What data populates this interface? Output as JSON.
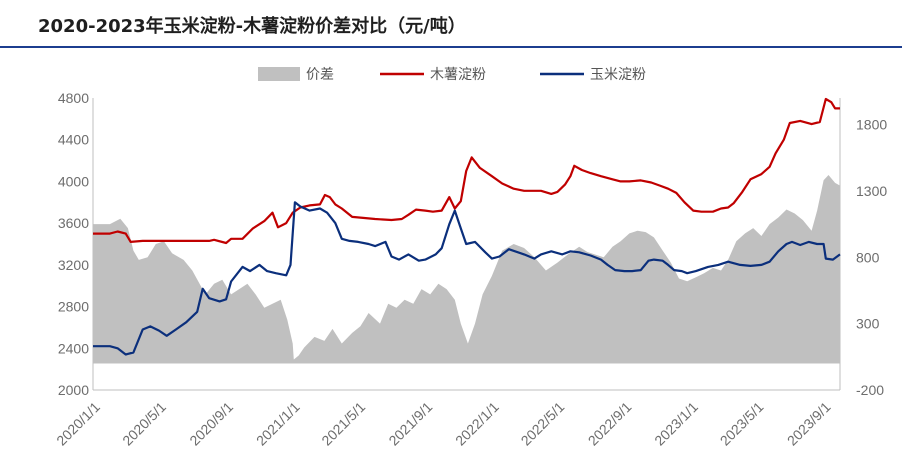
{
  "title": "2020-2023年玉米淀粉-木薯淀粉价差对比（元/吨）",
  "colors": {
    "spread": "#c0c0c0",
    "cassava": "#c00000",
    "corn": "#0b2f7c",
    "title_rule": "#1c3d8f"
  },
  "chart_data": {
    "type": "line",
    "title": "2020-2023年玉米淀粉-木薯淀粉价差对比（元/吨）",
    "legend": {
      "position": "top",
      "entries": [
        "价差",
        "木薯淀粉",
        "玉米淀粉"
      ]
    },
    "grid": false,
    "x_tick_labels": [
      "2020/1/1",
      "2020/5/1",
      "2020/9/1",
      "2021/1/1",
      "2021/5/1",
      "2021/9/1",
      "2022/1/1",
      "2022/5/1",
      "2022/9/1",
      "2023/1/1",
      "2023/5/1",
      "2023/9/1"
    ],
    "y_left": {
      "min": 2000,
      "max": 4800,
      "ticks": [
        "2000",
        "2400",
        "2800",
        "3200",
        "3600",
        "4000",
        "4400",
        "4800"
      ]
    },
    "y_right": {
      "min": -200,
      "max": 2000,
      "ticks": [
        "-200",
        "300",
        "800",
        "1300",
        "1800"
      ]
    },
    "series": [
      {
        "name": "价差",
        "type": "area",
        "axis": "right",
        "points": [
          [
            "2020-01-01",
            1050
          ],
          [
            "2020-02-01",
            1050
          ],
          [
            "2020-02-20",
            1090
          ],
          [
            "2020-03-05",
            1020
          ],
          [
            "2020-03-15",
            850
          ],
          [
            "2020-03-25",
            780
          ],
          [
            "2020-04-10",
            800
          ],
          [
            "2020-04-25",
            900
          ],
          [
            "2020-05-10",
            920
          ],
          [
            "2020-05-25",
            830
          ],
          [
            "2020-06-15",
            780
          ],
          [
            "2020-07-01",
            700
          ],
          [
            "2020-07-25",
            520
          ],
          [
            "2020-08-10",
            600
          ],
          [
            "2020-08-25",
            630
          ],
          [
            "2020-09-10",
            520
          ],
          [
            "2020-09-25",
            560
          ],
          [
            "2020-10-10",
            600
          ],
          [
            "2020-10-25",
            520
          ],
          [
            "2020-11-10",
            420
          ],
          [
            "2020-11-25",
            450
          ],
          [
            "2020-12-10",
            480
          ],
          [
            "2020-12-22",
            330
          ],
          [
            "2021-01-01",
            150
          ],
          [
            "2021-01-03",
            30
          ],
          [
            "2021-01-12",
            60
          ],
          [
            "2021-01-22",
            120
          ],
          [
            "2021-02-10",
            200
          ],
          [
            "2021-02-28",
            170
          ],
          [
            "2021-03-15",
            260
          ],
          [
            "2021-04-01",
            150
          ],
          [
            "2021-04-20",
            230
          ],
          [
            "2021-05-05",
            280
          ],
          [
            "2021-05-20",
            380
          ],
          [
            "2021-06-10",
            300
          ],
          [
            "2021-06-25",
            450
          ],
          [
            "2021-07-10",
            420
          ],
          [
            "2021-07-25",
            480
          ],
          [
            "2021-08-10",
            450
          ],
          [
            "2021-08-25",
            560
          ],
          [
            "2021-09-10",
            520
          ],
          [
            "2021-09-25",
            600
          ],
          [
            "2021-10-10",
            560
          ],
          [
            "2021-10-25",
            480
          ],
          [
            "2021-11-05",
            300
          ],
          [
            "2021-11-18",
            150
          ],
          [
            "2021-12-01",
            300
          ],
          [
            "2021-12-15",
            520
          ],
          [
            "2022-01-01",
            660
          ],
          [
            "2022-01-20",
            850
          ],
          [
            "2022-02-10",
            900
          ],
          [
            "2022-03-01",
            870
          ],
          [
            "2022-03-20",
            800
          ],
          [
            "2022-04-10",
            700
          ],
          [
            "2022-05-01",
            760
          ],
          [
            "2022-05-20",
            820
          ],
          [
            "2022-06-10",
            880
          ],
          [
            "2022-06-25",
            840
          ],
          [
            "2022-07-10",
            820
          ],
          [
            "2022-07-25",
            800
          ],
          [
            "2022-08-10",
            880
          ],
          [
            "2022-08-25",
            920
          ],
          [
            "2022-09-10",
            980
          ],
          [
            "2022-09-25",
            1000
          ],
          [
            "2022-10-10",
            990
          ],
          [
            "2022-10-25",
            950
          ],
          [
            "2022-11-10",
            850
          ],
          [
            "2022-11-25",
            760
          ],
          [
            "2022-12-10",
            640
          ],
          [
            "2022-12-25",
            620
          ],
          [
            "2023-01-10",
            650
          ],
          [
            "2023-01-25",
            680
          ],
          [
            "2023-02-10",
            720
          ],
          [
            "2023-02-25",
            700
          ],
          [
            "2023-03-10",
            780
          ],
          [
            "2023-03-25",
            920
          ],
          [
            "2023-04-10",
            980
          ],
          [
            "2023-04-25",
            1020
          ],
          [
            "2023-05-10",
            960
          ],
          [
            "2023-05-25",
            1050
          ],
          [
            "2023-06-10",
            1100
          ],
          [
            "2023-06-25",
            1160
          ],
          [
            "2023-07-10",
            1130
          ],
          [
            "2023-07-25",
            1080
          ],
          [
            "2023-08-10",
            1000
          ],
          [
            "2023-08-20",
            1150
          ],
          [
            "2023-09-01",
            1380
          ],
          [
            "2023-09-10",
            1420
          ],
          [
            "2023-09-22",
            1360
          ],
          [
            "2023-10-01",
            1340
          ]
        ]
      },
      {
        "name": "木薯淀粉",
        "type": "line",
        "axis": "left",
        "points": [
          [
            "2020-01-01",
            3500
          ],
          [
            "2020-02-01",
            3500
          ],
          [
            "2020-02-15",
            3520
          ],
          [
            "2020-03-01",
            3500
          ],
          [
            "2020-03-10",
            3420
          ],
          [
            "2020-04-01",
            3430
          ],
          [
            "2020-05-01",
            3430
          ],
          [
            "2020-06-01",
            3430
          ],
          [
            "2020-07-01",
            3430
          ],
          [
            "2020-08-01",
            3430
          ],
          [
            "2020-08-10",
            3440
          ],
          [
            "2020-09-01",
            3410
          ],
          [
            "2020-09-10",
            3450
          ],
          [
            "2020-10-01",
            3450
          ],
          [
            "2020-10-20",
            3550
          ],
          [
            "2020-11-10",
            3620
          ],
          [
            "2020-11-25",
            3700
          ],
          [
            "2020-12-05",
            3560
          ],
          [
            "2020-12-20",
            3600
          ],
          [
            "2021-01-01",
            3700
          ],
          [
            "2021-01-15",
            3750
          ],
          [
            "2021-02-01",
            3770
          ],
          [
            "2021-02-20",
            3780
          ],
          [
            "2021-03-01",
            3870
          ],
          [
            "2021-03-10",
            3850
          ],
          [
            "2021-03-20",
            3780
          ],
          [
            "2021-04-01",
            3740
          ],
          [
            "2021-04-20",
            3660
          ],
          [
            "2021-05-10",
            3650
          ],
          [
            "2021-06-01",
            3640
          ],
          [
            "2021-07-01",
            3630
          ],
          [
            "2021-07-20",
            3640
          ],
          [
            "2021-08-01",
            3680
          ],
          [
            "2021-08-15",
            3730
          ],
          [
            "2021-09-01",
            3720
          ],
          [
            "2021-09-15",
            3710
          ],
          [
            "2021-10-01",
            3720
          ],
          [
            "2021-10-15",
            3850
          ],
          [
            "2021-10-25",
            3740
          ],
          [
            "2021-11-05",
            3810
          ],
          [
            "2021-11-15",
            4100
          ],
          [
            "2021-11-25",
            4230
          ],
          [
            "2021-12-10",
            4130
          ],
          [
            "2022-01-01",
            4050
          ],
          [
            "2022-01-20",
            3980
          ],
          [
            "2022-02-10",
            3930
          ],
          [
            "2022-03-01",
            3910
          ],
          [
            "2022-04-01",
            3910
          ],
          [
            "2022-04-20",
            3880
          ],
          [
            "2022-05-01",
            3900
          ],
          [
            "2022-05-15",
            3970
          ],
          [
            "2022-05-25",
            4050
          ],
          [
            "2022-06-01",
            4150
          ],
          [
            "2022-06-15",
            4110
          ],
          [
            "2022-07-01",
            4080
          ],
          [
            "2022-07-20",
            4050
          ],
          [
            "2022-08-10",
            4020
          ],
          [
            "2022-08-25",
            4000
          ],
          [
            "2022-09-10",
            4000
          ],
          [
            "2022-10-01",
            4010
          ],
          [
            "2022-10-20",
            3990
          ],
          [
            "2022-11-05",
            3960
          ],
          [
            "2022-11-20",
            3930
          ],
          [
            "2022-12-05",
            3890
          ],
          [
            "2022-12-20",
            3800
          ],
          [
            "2023-01-05",
            3720
          ],
          [
            "2023-01-20",
            3710
          ],
          [
            "2023-02-10",
            3710
          ],
          [
            "2023-02-25",
            3740
          ],
          [
            "2023-03-10",
            3750
          ],
          [
            "2023-03-20",
            3790
          ],
          [
            "2023-04-05",
            3900
          ],
          [
            "2023-04-20",
            4020
          ],
          [
            "2023-05-10",
            4070
          ],
          [
            "2023-05-25",
            4140
          ],
          [
            "2023-06-05",
            4270
          ],
          [
            "2023-06-20",
            4400
          ],
          [
            "2023-07-01",
            4560
          ],
          [
            "2023-07-20",
            4580
          ],
          [
            "2023-08-10",
            4550
          ],
          [
            "2023-08-25",
            4570
          ],
          [
            "2023-09-05",
            4790
          ],
          [
            "2023-09-15",
            4760
          ],
          [
            "2023-09-22",
            4700
          ],
          [
            "2023-10-01",
            4700
          ]
        ]
      },
      {
        "name": "玉米淀粉",
        "type": "line",
        "axis": "left",
        "points": [
          [
            "2020-01-01",
            2420
          ],
          [
            "2020-02-01",
            2420
          ],
          [
            "2020-02-15",
            2400
          ],
          [
            "2020-03-01",
            2340
          ],
          [
            "2020-03-15",
            2360
          ],
          [
            "2020-04-01",
            2580
          ],
          [
            "2020-04-15",
            2610
          ],
          [
            "2020-05-01",
            2570
          ],
          [
            "2020-05-15",
            2520
          ],
          [
            "2020-06-01",
            2580
          ],
          [
            "2020-06-20",
            2650
          ],
          [
            "2020-07-10",
            2750
          ],
          [
            "2020-07-20",
            2970
          ],
          [
            "2020-08-01",
            2880
          ],
          [
            "2020-08-20",
            2850
          ],
          [
            "2020-09-01",
            2870
          ],
          [
            "2020-09-10",
            3040
          ],
          [
            "2020-10-01",
            3180
          ],
          [
            "2020-10-15",
            3140
          ],
          [
            "2020-11-01",
            3200
          ],
          [
            "2020-11-15",
            3140
          ],
          [
            "2020-12-01",
            3120
          ],
          [
            "2020-12-20",
            3100
          ],
          [
            "2020-12-28",
            3200
          ],
          [
            "2021-01-01",
            3500
          ],
          [
            "2021-01-05",
            3800
          ],
          [
            "2021-01-15",
            3760
          ],
          [
            "2021-02-01",
            3720
          ],
          [
            "2021-02-20",
            3740
          ],
          [
            "2021-03-05",
            3700
          ],
          [
            "2021-03-20",
            3600
          ],
          [
            "2021-04-01",
            3450
          ],
          [
            "2021-04-15",
            3430
          ],
          [
            "2021-05-01",
            3420
          ],
          [
            "2021-05-20",
            3400
          ],
          [
            "2021-06-01",
            3380
          ],
          [
            "2021-06-20",
            3420
          ],
          [
            "2021-07-01",
            3280
          ],
          [
            "2021-07-15",
            3250
          ],
          [
            "2021-08-01",
            3300
          ],
          [
            "2021-08-20",
            3240
          ],
          [
            "2021-09-01",
            3250
          ],
          [
            "2021-09-20",
            3300
          ],
          [
            "2021-10-01",
            3360
          ],
          [
            "2021-10-15",
            3590
          ],
          [
            "2021-10-25",
            3720
          ],
          [
            "2021-11-05",
            3550
          ],
          [
            "2021-11-15",
            3400
          ],
          [
            "2021-12-01",
            3420
          ],
          [
            "2021-12-20",
            3320
          ],
          [
            "2022-01-01",
            3260
          ],
          [
            "2022-01-15",
            3280
          ],
          [
            "2022-02-01",
            3350
          ],
          [
            "2022-03-01",
            3300
          ],
          [
            "2022-03-20",
            3260
          ],
          [
            "2022-04-01",
            3300
          ],
          [
            "2022-04-20",
            3330
          ],
          [
            "2022-05-10",
            3300
          ],
          [
            "2022-05-25",
            3330
          ],
          [
            "2022-06-10",
            3320
          ],
          [
            "2022-07-01",
            3290
          ],
          [
            "2022-07-20",
            3250
          ],
          [
            "2022-08-01",
            3200
          ],
          [
            "2022-08-15",
            3150
          ],
          [
            "2022-09-01",
            3140
          ],
          [
            "2022-09-15",
            3140
          ],
          [
            "2022-10-01",
            3150
          ],
          [
            "2022-10-15",
            3240
          ],
          [
            "2022-10-25",
            3250
          ],
          [
            "2022-11-10",
            3240
          ],
          [
            "2022-11-20",
            3200
          ],
          [
            "2022-12-01",
            3150
          ],
          [
            "2022-12-15",
            3140
          ],
          [
            "2022-12-25",
            3120
          ],
          [
            "2023-01-10",
            3140
          ],
          [
            "2023-02-01",
            3180
          ],
          [
            "2023-02-20",
            3200
          ],
          [
            "2023-03-10",
            3230
          ],
          [
            "2023-04-01",
            3200
          ],
          [
            "2023-04-20",
            3190
          ],
          [
            "2023-05-10",
            3200
          ],
          [
            "2023-05-25",
            3230
          ],
          [
            "2023-06-10",
            3330
          ],
          [
            "2023-06-25",
            3400
          ],
          [
            "2023-07-05",
            3420
          ],
          [
            "2023-07-20",
            3390
          ],
          [
            "2023-08-05",
            3420
          ],
          [
            "2023-08-20",
            3400
          ],
          [
            "2023-09-01",
            3400
          ],
          [
            "2023-09-05",
            3260
          ],
          [
            "2023-09-18",
            3250
          ],
          [
            "2023-10-01",
            3300
          ]
        ]
      }
    ]
  }
}
